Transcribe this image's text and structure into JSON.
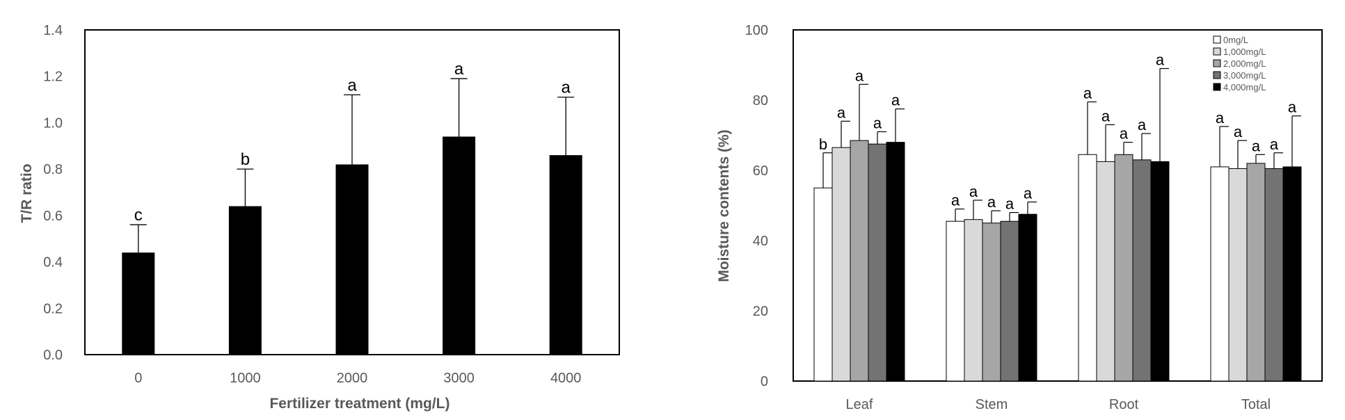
{
  "chart_data": [
    {
      "type": "bar",
      "title": "",
      "xlabel": "Fertilizer treatment (mg/L)",
      "ylabel": "T/R ratio",
      "ylim": [
        0,
        1.4
      ],
      "yticks": [
        "0.0",
        "0.2",
        "0.4",
        "0.6",
        "0.8",
        "1.0",
        "1.2",
        "1.4"
      ],
      "categories": [
        "0",
        "1000",
        "2000",
        "3000",
        "4000"
      ],
      "values": [
        0.44,
        0.64,
        0.82,
        0.94,
        0.86
      ],
      "errors": [
        0.12,
        0.16,
        0.3,
        0.25,
        0.25
      ],
      "letters": [
        "c",
        "b",
        "a",
        "a",
        "a"
      ],
      "color": "#000000",
      "grid": false
    },
    {
      "type": "bar",
      "title": "",
      "xlabel": "",
      "ylabel": "Moisture contents (%)",
      "ylim": [
        0,
        100
      ],
      "yticks": [
        "0",
        "20",
        "40",
        "60",
        "80",
        "100"
      ],
      "categories": [
        "Leaf",
        "Stem",
        "Root",
        "Total"
      ],
      "legend_position": "top-right",
      "grid": false,
      "series": [
        {
          "name": "0mg/L",
          "color": "#ffffff",
          "values": [
            55.0,
            45.5,
            64.5,
            61.0
          ],
          "errors": [
            10.0,
            3.5,
            15.0,
            11.5
          ],
          "letters": [
            "b",
            "a",
            "a",
            "a"
          ]
        },
        {
          "name": "1,000mg/L",
          "color": "#d9d9d9",
          "values": [
            66.5,
            46.0,
            62.5,
            60.5
          ],
          "errors": [
            7.5,
            5.5,
            10.5,
            8.0
          ],
          "letters": [
            "a",
            "a",
            "a",
            "a"
          ]
        },
        {
          "name": "2,000mg/L",
          "color": "#a6a6a6",
          "values": [
            68.5,
            45.0,
            64.5,
            62.0
          ],
          "errors": [
            16.0,
            3.5,
            3.5,
            2.5
          ],
          "letters": [
            "a",
            "a",
            "a",
            "a"
          ]
        },
        {
          "name": "3,000mg/L",
          "color": "#737373",
          "values": [
            67.5,
            45.5,
            63.0,
            60.5
          ],
          "errors": [
            3.5,
            2.5,
            7.5,
            4.5
          ],
          "letters": [
            "a",
            "a",
            "a",
            "a"
          ]
        },
        {
          "name": "4,000mg/L",
          "color": "#000000",
          "values": [
            68.0,
            47.5,
            62.5,
            61.0
          ],
          "errors": [
            9.5,
            3.5,
            26.5,
            14.5
          ],
          "letters": [
            "a",
            "a",
            "a",
            "a"
          ]
        }
      ]
    }
  ]
}
